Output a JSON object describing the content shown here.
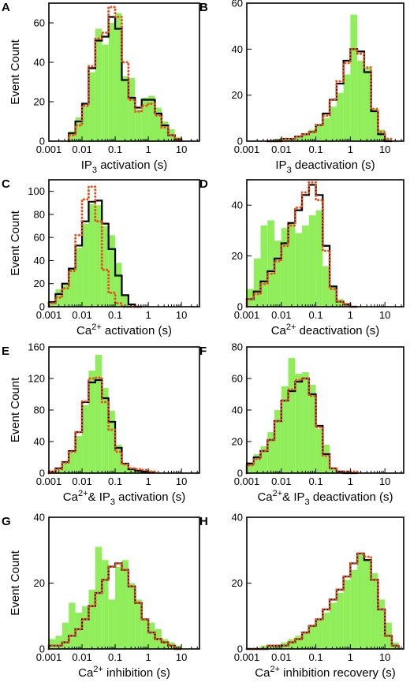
{
  "figure": {
    "colors": {
      "histogram_fill": "#90EE5A",
      "model_line": "#000000",
      "fit_line": "#E8501E",
      "axis": "#000000"
    }
  },
  "chart_data": [
    {
      "panel": "A",
      "type": "bar",
      "xscale": "log",
      "xticks": [
        "0.001",
        "0.01",
        "0.1",
        "1",
        "10"
      ],
      "xlim": [
        0.001,
        35
      ],
      "ylim": [
        0,
        70
      ],
      "yticks": [
        0,
        20,
        40,
        60
      ],
      "ylabel": "Event Count",
      "xlabel": {
        "pre": "IP",
        "sub": "3",
        "post": " activation (s)"
      },
      "bin_edges_log10": [
        -3,
        -2.5
      ],
      "bins": {
        "start_log10": -2.4,
        "width_log10": 0.2,
        "hist": [
          5,
          12,
          18,
          35,
          57,
          49,
          60,
          65,
          33,
          32,
          16,
          22,
          23,
          17,
          10,
          6,
          2
        ],
        "model": [
          4,
          10,
          19,
          37,
          51,
          53,
          63,
          57,
          31,
          22,
          17,
          21,
          21,
          14,
          8,
          3,
          1
        ],
        "fit": [
          3,
          8,
          18,
          38,
          52,
          55,
          68,
          63,
          40,
          21,
          15,
          18,
          19,
          13,
          7,
          3,
          1
        ]
      }
    },
    {
      "panel": "B",
      "type": "bar",
      "xscale": "log",
      "xticks": [
        "0.001",
        "0.01",
        "0.1",
        "1",
        "10"
      ],
      "xlim": [
        0.001,
        35
      ],
      "ylim": [
        0,
        60
      ],
      "yticks": [
        0,
        20,
        40,
        60
      ],
      "ylabel": "",
      "xlabel": {
        "pre": "IP",
        "sub": "3",
        "post": " deactivation (s)"
      },
      "bins": {
        "start_log10": -2.4,
        "width_log10": 0.2,
        "hist": [
          0,
          1,
          1,
          1,
          2,
          3,
          5,
          7,
          10,
          15,
          21,
          29,
          55,
          35,
          32,
          14,
          5,
          1
        ],
        "model": [
          0,
          0,
          1,
          1,
          2,
          3,
          4,
          7,
          12,
          18,
          25,
          35,
          40,
          39,
          30,
          13,
          3,
          0
        ],
        "fit": [
          0,
          0,
          1,
          1,
          2,
          3,
          4,
          7,
          11,
          18,
          26,
          34,
          40,
          38,
          32,
          14,
          4,
          1
        ]
      }
    },
    {
      "panel": "C",
      "type": "bar",
      "xscale": "log",
      "xticks": [
        "0.001",
        "0.01",
        "0.1",
        "1",
        "10"
      ],
      "xlim": [
        0.001,
        35
      ],
      "ylim": [
        0,
        110
      ],
      "yticks": [
        0,
        20,
        40,
        60,
        80,
        100
      ],
      "ylabel": "Event Count",
      "xlabel": {
        "pre": "Ca",
        "sup": "2+",
        "post": " activation (s)"
      },
      "bins": {
        "start_log10": -3.0,
        "width_log10": 0.2,
        "hist": [
          5,
          15,
          19,
          34,
          51,
          72,
          89,
          88,
          70,
          62,
          38,
          10,
          2,
          0
        ],
        "model": [
          4,
          11,
          20,
          33,
          53,
          74,
          91,
          92,
          72,
          50,
          27,
          10,
          2,
          0
        ],
        "fit": [
          3,
          8,
          16,
          31,
          62,
          93,
          104,
          74,
          32,
          12,
          3,
          0,
          0,
          0
        ]
      }
    },
    {
      "panel": "D",
      "type": "bar",
      "xscale": "log",
      "xticks": [
        "0.001",
        "0.01",
        "0.1",
        "1",
        "10"
      ],
      "xlim": [
        0.001,
        35
      ],
      "ylim": [
        0,
        50
      ],
      "yticks": [
        0,
        20,
        40
      ],
      "ylabel": "",
      "xlabel": {
        "pre": "Ca",
        "sup": "2+",
        "post": " deactivation (s)"
      },
      "bins": {
        "start_log10": -3.0,
        "width_log10": 0.2,
        "hist": [
          7,
          19,
          32,
          34,
          26,
          31,
          33,
          29,
          32,
          36,
          38,
          16,
          8,
          3,
          1,
          0
        ],
        "model": [
          3,
          6,
          10,
          14,
          19,
          25,
          33,
          38,
          44,
          48,
          44,
          24,
          8,
          2,
          1,
          0
        ],
        "fit": [
          3,
          5,
          9,
          13,
          18,
          24,
          32,
          39,
          45,
          49,
          42,
          22,
          7,
          2,
          1,
          0
        ]
      }
    },
    {
      "panel": "E",
      "type": "bar",
      "xscale": "log",
      "xticks": [
        "0.001",
        "0.01",
        "0.1",
        "1",
        "10"
      ],
      "xlim": [
        0.001,
        35
      ],
      "ylim": [
        0,
        160
      ],
      "yticks": [
        0,
        40,
        80,
        120,
        160
      ],
      "ylabel": "Event Count",
      "xlabel": {
        "pre": "Ca",
        "sup": "2+",
        "post": "& IP",
        "sub": "3",
        "post2": " activation (s)"
      },
      "bins": {
        "start_log10": -3.0,
        "width_log10": 0.2,
        "hist": [
          2,
          5,
          13,
          26,
          47,
          86,
          130,
          150,
          108,
          79,
          36,
          10,
          4,
          3,
          2,
          1
        ],
        "model": [
          2,
          6,
          14,
          28,
          52,
          90,
          115,
          118,
          95,
          65,
          32,
          12,
          5,
          3,
          2,
          1
        ],
        "fit": [
          2,
          5,
          13,
          27,
          52,
          91,
          120,
          121,
          90,
          55,
          27,
          11,
          6,
          5,
          4,
          2
        ]
      }
    },
    {
      "panel": "F",
      "type": "bar",
      "xscale": "log",
      "xticks": [
        "0.001",
        "0.01",
        "0.1",
        "1",
        "10"
      ],
      "xlim": [
        0.001,
        35
      ],
      "ylim": [
        0,
        80
      ],
      "yticks": [
        0,
        20,
        40,
        60,
        80
      ],
      "ylabel": "",
      "xlabel": {
        "pre": "Ca",
        "sup": "2+",
        "post": "& IP",
        "sub": "3",
        "post2": " deactivation (s)"
      },
      "bins": {
        "start_log10": -3.0,
        "width_log10": 0.2,
        "hist": [
          7,
          12,
          17,
          26,
          40,
          55,
          73,
          63,
          64,
          56,
          28,
          18,
          3,
          1,
          0,
          0
        ],
        "model": [
          6,
          10,
          14,
          21,
          33,
          46,
          52,
          58,
          60,
          50,
          30,
          12,
          3,
          1,
          0,
          0
        ],
        "fit": [
          5,
          9,
          14,
          21,
          33,
          46,
          53,
          59,
          60,
          49,
          29,
          11,
          3,
          1,
          1,
          1
        ]
      }
    },
    {
      "panel": "G",
      "type": "bar",
      "xscale": "log",
      "xticks": [
        "0.001",
        "0.01",
        "0.1",
        "1",
        "10"
      ],
      "xlim": [
        0.001,
        35
      ],
      "ylim": [
        0,
        40
      ],
      "yticks": [
        0,
        20,
        40
      ],
      "ylabel": "Event Count",
      "xlabel": {
        "pre": "Ca",
        "sup": "2+",
        "post": " inhibition (s)"
      },
      "bins": {
        "start_log10": -3.0,
        "width_log10": 0.2,
        "hist": [
          3,
          4,
          8,
          14,
          11,
          13,
          18,
          31,
          27,
          15,
          25,
          27,
          20,
          15,
          9,
          8,
          6,
          3,
          2,
          1
        ],
        "model": [
          1,
          1,
          2,
          4,
          6,
          9,
          13,
          17,
          21,
          25,
          26,
          24,
          19,
          14,
          9,
          5,
          3,
          2,
          1,
          0
        ],
        "fit": [
          1,
          1,
          2,
          4,
          6,
          9,
          13,
          17,
          21,
          25,
          26,
          24,
          19,
          14,
          9,
          5,
          3,
          2,
          1,
          0
        ]
      }
    },
    {
      "panel": "H",
      "type": "bar",
      "xscale": "log",
      "xticks": [
        "0.001",
        "0.01",
        "0.1",
        "1",
        "10"
      ],
      "xlim": [
        0.001,
        35
      ],
      "ylim": [
        0,
        40
      ],
      "yticks": [
        0,
        20,
        40
      ],
      "ylabel": "",
      "xlabel": {
        "pre": "Ca",
        "sup": "2+",
        "post": " inhibition recovery (s)"
      },
      "bins": {
        "start_log10": -3.0,
        "width_log10": 0.2,
        "hist": [
          0,
          0,
          1,
          1,
          1,
          2,
          3,
          4,
          5,
          7,
          9,
          11,
          14,
          17,
          21,
          24,
          29,
          27,
          23,
          15,
          8,
          2
        ],
        "model": [
          0,
          0,
          0,
          1,
          1,
          1,
          2,
          3,
          5,
          7,
          9,
          12,
          15,
          18,
          22,
          26,
          29,
          27,
          21,
          12,
          4,
          1
        ],
        "fit": [
          0,
          0,
          0,
          1,
          1,
          1,
          2,
          3,
          5,
          7,
          9,
          12,
          15,
          18,
          22,
          26,
          29,
          28,
          21,
          12,
          4,
          1
        ]
      }
    }
  ]
}
